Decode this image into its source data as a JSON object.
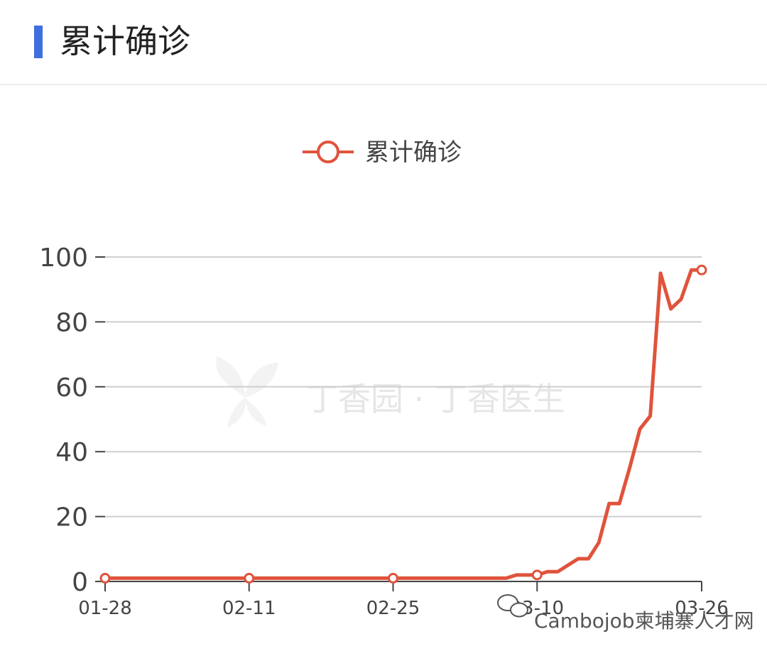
{
  "header": {
    "title": "累计确诊",
    "accent_color": "#3f6fe0"
  },
  "chart_data": {
    "type": "line",
    "title": "",
    "legend": {
      "label": "累计确诊",
      "placement": "top-center"
    },
    "x_ticks": [
      "01-28",
      "02-11",
      "02-25",
      "03-10",
      "03-26"
    ],
    "y_ticks": [
      0,
      20,
      40,
      60,
      80,
      100
    ],
    "ylim": [
      0,
      100
    ],
    "grid": true,
    "line_color": "#e0533c",
    "series": [
      {
        "name": "累计确诊",
        "points": [
          [
            "01-28",
            1
          ],
          [
            "02-11",
            1
          ],
          [
            "02-25",
            1
          ],
          [
            "03-07",
            1
          ],
          [
            "03-08",
            2
          ],
          [
            "03-10",
            2
          ],
          [
            "03-11",
            3
          ],
          [
            "03-12",
            3
          ],
          [
            "03-13",
            5
          ],
          [
            "03-14",
            7
          ],
          [
            "03-15",
            7
          ],
          [
            "03-16",
            12
          ],
          [
            "03-17",
            24
          ],
          [
            "03-18",
            24
          ],
          [
            "03-19",
            35
          ],
          [
            "03-20",
            47
          ],
          [
            "03-21",
            51
          ],
          [
            "03-22",
            95
          ],
          [
            "03-23",
            84
          ],
          [
            "03-24",
            87
          ],
          [
            "03-25",
            96
          ],
          [
            "03-26",
            96
          ]
        ]
      }
    ]
  },
  "watermark": {
    "text": "丁香园 · 丁香医生"
  },
  "footer": {
    "text": "Cambojob柬埔寨人才网"
  }
}
